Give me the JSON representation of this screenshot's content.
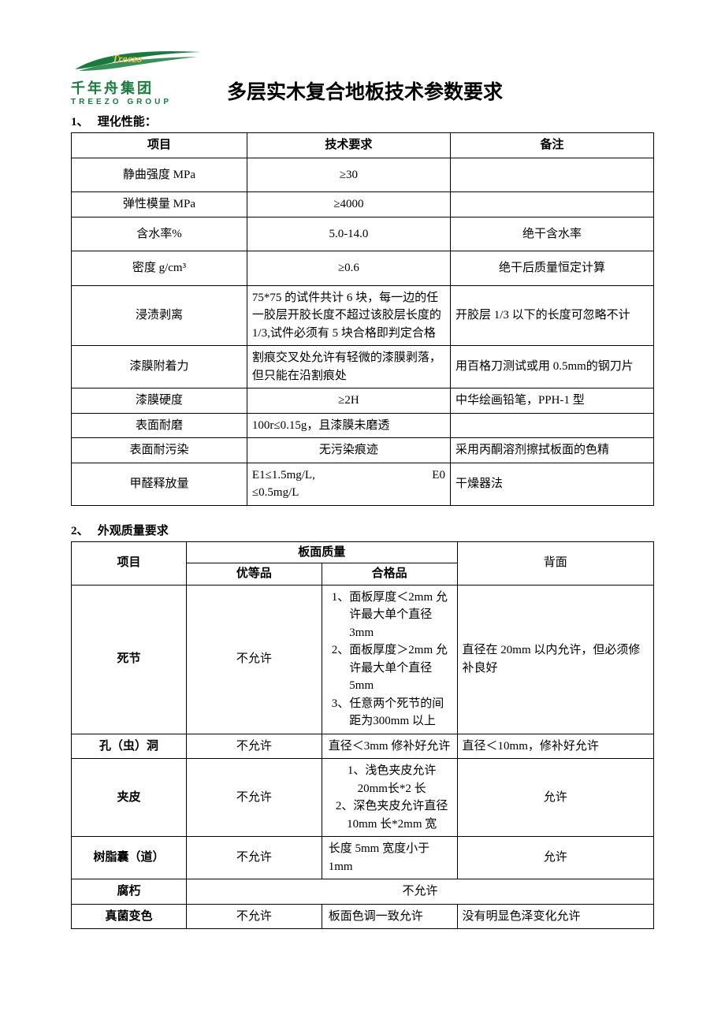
{
  "logo": {
    "brand_en_top": "Treezo",
    "brand_cn": "千年舟集团",
    "brand_en": "TREEZO GROUP",
    "swoosh_color": "#1a7a3e",
    "gold_color": "#e8c44a"
  },
  "title": "多层实木复合地板技术参数要求",
  "section1": {
    "num": "1、",
    "heading": "理化性能：",
    "headers": [
      "项目",
      "技术要求",
      "备注"
    ],
    "rows": [
      {
        "c1": "静曲强度 MPa",
        "c2": "≥30",
        "c3": "",
        "c2_align": "center",
        "pad": "tall"
      },
      {
        "c1": "弹性模量 MPa",
        "c2": "≥4000",
        "c3": "",
        "c2_align": "center",
        "pad": "normal"
      },
      {
        "c1": "含水率%",
        "c2": "5.0-14.0",
        "c3": "绝干含水率",
        "c2_align": "center",
        "c3_align": "center",
        "pad": "tall"
      },
      {
        "c1": "密度 g/cm³",
        "c2": "≥0.6",
        "c3": "绝干后质量恒定计算",
        "c2_align": "center",
        "c3_align": "center",
        "pad": "tall"
      },
      {
        "c1": "浸渍剥离",
        "c2": "75*75 的试件共计 6 块，每一边的任一胶层开胶长度不超过该胶层长度的1/3,试件必须有 5 块合格即判定合格",
        "c3": "开胶层 1/3 以下的长度可忽略不计"
      },
      {
        "c1": "漆膜附着力",
        "c2": "割痕交叉处允许有轻微的漆膜剥落，但只能在沿割痕处",
        "c3": "用百格刀测试或用 0.5mm的钢刀片"
      },
      {
        "c1": "漆膜硬度",
        "c2": "≥2H",
        "c3": "中华绘画铅笔，PPH-1 型",
        "c2_align": "center"
      },
      {
        "c1": "表面耐磨",
        "c2": "100r≤0.15g，且漆膜未磨透",
        "c3": ""
      },
      {
        "c1": "表面耐污染",
        "c2": "无污染痕迹",
        "c3": "采用丙酮溶剂擦拭板面的色精",
        "c2_align": "center"
      },
      {
        "c1": "甲醛释放量",
        "c2_lines": [
          "E1≤1.5mg/L,",
          "E0"
        ],
        "c2b": "≤0.5mg/L",
        "c3": "干燥器法"
      }
    ]
  },
  "section2": {
    "num": "2、",
    "heading": "外观质量要求",
    "headers": {
      "c1": "项目",
      "c2span": "板面质量",
      "c2a": "优等品",
      "c2b": "合格品",
      "c3": "背面"
    },
    "rows": [
      {
        "c1": "死节",
        "c2a": "不允许",
        "c2b_list": [
          {
            "n": "1、",
            "t": "面板厚度＜2mm 允许最大单个直径 3mm"
          },
          {
            "n": "2、",
            "t": "面板厚度＞2mm 允许最大单个直径 5mm"
          },
          {
            "n": "3、",
            "t": "任意两个死节的间距为300mm 以上"
          }
        ],
        "c3": "直径在 20mm 以内允许，但必须修补良好"
      },
      {
        "c1": "孔（虫）洞",
        "c2a": "不允许",
        "c2b": "直径＜3mm 修补好允许",
        "c3": "直径＜10mm，修补好允许"
      },
      {
        "c1": "夹皮",
        "c2a": "不允许",
        "c2b_list": [
          {
            "n": "1、",
            "t": "浅色夹皮允许 20mm长*2 长"
          },
          {
            "n": "2、",
            "t": "深色夹皮允许直径10mm 长*2mm 宽"
          }
        ],
        "c2b_align": "center",
        "c3": "允许",
        "c3_align": "center"
      },
      {
        "c1": "树脂囊（道）",
        "c2a": "不允许",
        "c2b": "长度 5mm 宽度小于 1mm",
        "c3": "允许",
        "c3_align": "center"
      },
      {
        "c1": "腐朽",
        "span_text": "不允许"
      },
      {
        "c1": "真菌变色",
        "c2a": "不允许",
        "c2b": "板面色调一致允许",
        "c3": "没有明显色泽变化允许"
      }
    ]
  }
}
